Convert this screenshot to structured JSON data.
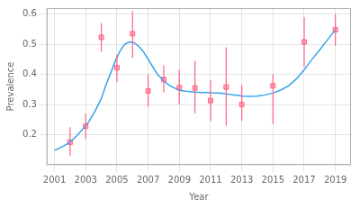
{
  "chart_data": {
    "type": "line",
    "xlabel": "Year",
    "ylabel": "Prevalence",
    "xlim": [
      2000.5,
      2020
    ],
    "xticks": [
      2001,
      2003,
      2005,
      2007,
      2009,
      2011,
      2013,
      2015,
      2017,
      2019
    ],
    "ylim": [
      0.1,
      0.62
    ],
    "yticks": [
      0.2,
      0.3,
      0.4,
      0.5,
      0.6
    ],
    "grid": true,
    "series": [
      {
        "type": "line",
        "line_style": "solid",
        "x": [
          2001,
          2001.3,
          2001.6,
          2002,
          2002.4,
          2002.8,
          2003.2,
          2003.6,
          2004,
          2004.3,
          2004.6,
          2004.9,
          2005.2,
          2005.5,
          2005.8,
          2006.1,
          2006.4,
          2006.7,
          2007,
          2007.3,
          2007.6,
          2008,
          2008.4,
          2008.8,
          2009,
          2009.4,
          2009.8,
          2010,
          2010.4,
          2010.8,
          2011,
          2011.4,
          2011.8,
          2012,
          2012.4,
          2012.8,
          2013,
          2013.5,
          2014,
          2014.5,
          2015,
          2015.5,
          2016,
          2016.5,
          2017,
          2017.5,
          2018,
          2018.5,
          2019
        ],
        "values": [
          0.148,
          0.155,
          0.163,
          0.175,
          0.195,
          0.218,
          0.243,
          0.278,
          0.32,
          0.365,
          0.405,
          0.445,
          0.478,
          0.5,
          0.508,
          0.505,
          0.493,
          0.475,
          0.45,
          0.425,
          0.4,
          0.378,
          0.362,
          0.352,
          0.347,
          0.344,
          0.342,
          0.341,
          0.34,
          0.34,
          0.339,
          0.338,
          0.337,
          0.335,
          0.332,
          0.33,
          0.328,
          0.327,
          0.328,
          0.332,
          0.338,
          0.348,
          0.362,
          0.385,
          0.415,
          0.45,
          0.482,
          0.515,
          0.548
        ]
      },
      {
        "type": "scatter",
        "marker": "square",
        "x": [
          2002,
          2003,
          2004,
          2005,
          2006,
          2007,
          2008,
          2009,
          2010,
          2011,
          2012,
          2013,
          2015,
          2017,
          2019
        ],
        "values": [
          0.175,
          0.228,
          0.523,
          0.422,
          0.535,
          0.345,
          0.383,
          0.356,
          0.355,
          0.313,
          0.358,
          0.3,
          0.362,
          0.508,
          0.548
        ],
        "ci_lower": [
          0.13,
          0.185,
          0.475,
          0.375,
          0.455,
          0.293,
          0.34,
          0.3,
          0.27,
          0.245,
          0.23,
          0.245,
          0.235,
          0.425,
          0.495
        ],
        "ci_upper": [
          0.225,
          0.27,
          0.57,
          0.465,
          0.61,
          0.4,
          0.43,
          0.415,
          0.445,
          0.38,
          0.49,
          0.365,
          0.4,
          0.59,
          0.6
        ]
      }
    ]
  }
}
